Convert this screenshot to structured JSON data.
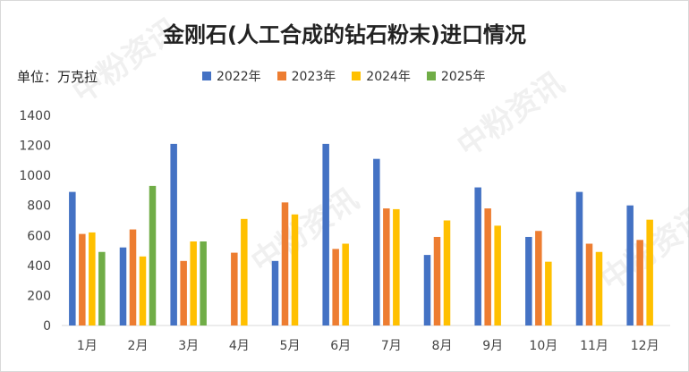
{
  "title": "金刚石(人工合成的钻石粉末)进口情况",
  "unit_label": "单位：万克拉",
  "watermark": "中粉资讯",
  "chart_data": {
    "type": "bar",
    "title": "金刚石(人工合成的钻石粉末)进口情况",
    "ylabel": "单位：万克拉",
    "xlabel": "",
    "ylim": [
      0,
      1400
    ],
    "yticks": [
      0,
      200,
      400,
      600,
      800,
      1000,
      1200,
      1400
    ],
    "grid": false,
    "legend_position": "top",
    "categories": [
      "1月",
      "2月",
      "3月",
      "4月",
      "5月",
      "6月",
      "7月",
      "8月",
      "9月",
      "10月",
      "11月",
      "12月"
    ],
    "series": [
      {
        "name": "2022年",
        "color": "#4472C4",
        "values": [
          890,
          520,
          1210,
          null,
          430,
          1210,
          1110,
          470,
          920,
          590,
          890,
          800
        ]
      },
      {
        "name": "2023年",
        "color": "#ED7D31",
        "values": [
          610,
          640,
          430,
          485,
          820,
          510,
          780,
          590,
          780,
          630,
          545,
          570
        ]
      },
      {
        "name": "2024年",
        "color": "#FFC000",
        "values": [
          620,
          460,
          560,
          710,
          740,
          545,
          775,
          700,
          665,
          425,
          490,
          705
        ]
      },
      {
        "name": "2025年",
        "color": "#70AD47",
        "values": [
          490,
          930,
          560,
          null,
          null,
          null,
          null,
          null,
          null,
          null,
          null,
          null
        ]
      }
    ]
  }
}
